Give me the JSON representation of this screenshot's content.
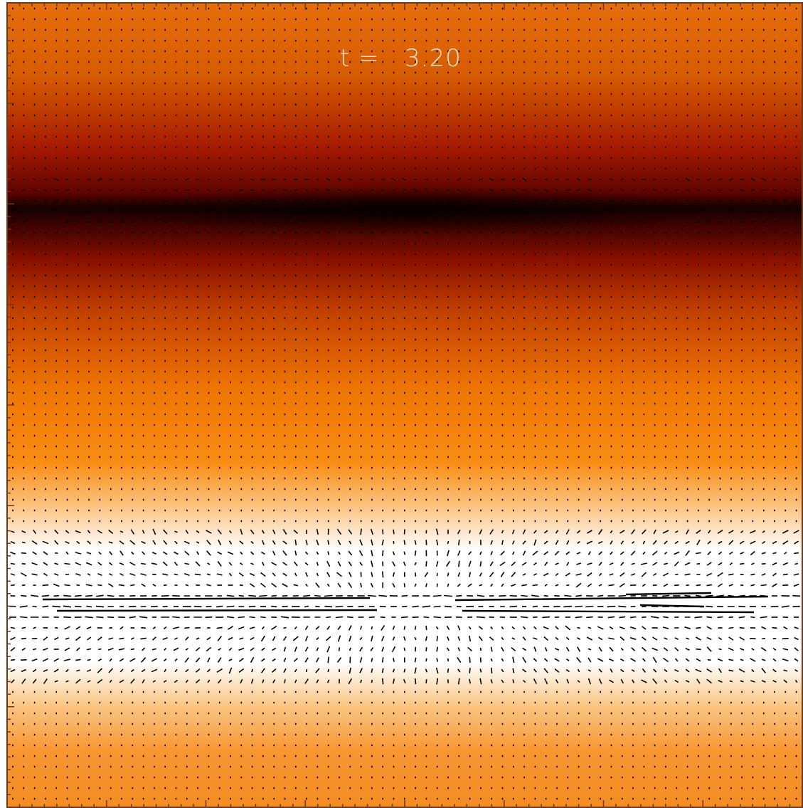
{
  "time_label": "t =   3.20"
}
